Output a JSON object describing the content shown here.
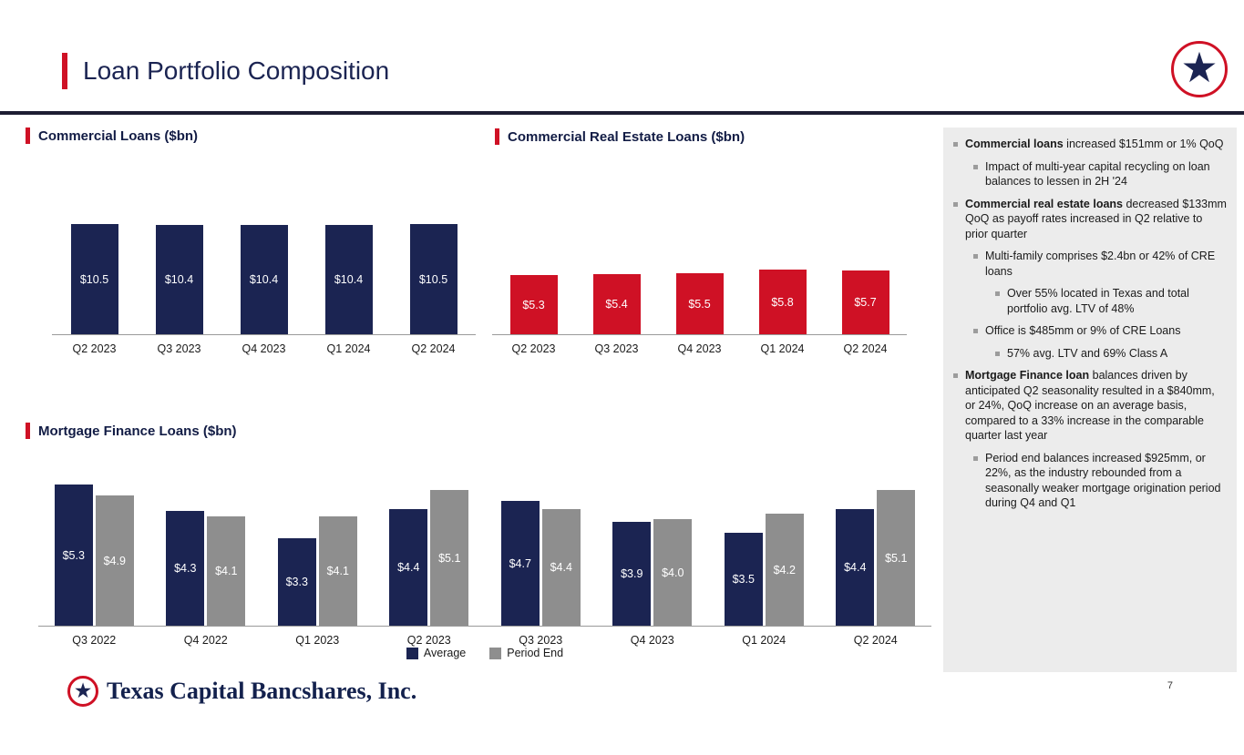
{
  "header": {
    "title": "Loan Portfolio Composition"
  },
  "footer": {
    "company": "Texas Capital Bancshares, Inc.",
    "page_number": "7"
  },
  "colors": {
    "navy": "#1b2452",
    "red": "#cf1125",
    "gray": "#8e8e8e",
    "sidebar_bg": "#ececec"
  },
  "chart_data": [
    {
      "type": "bar",
      "title": "Commercial Loans ($bn)",
      "categories": [
        "Q2 2023",
        "Q3 2023",
        "Q4 2023",
        "Q1 2024",
        "Q2 2024"
      ],
      "values": [
        10.5,
        10.4,
        10.4,
        10.4,
        10.5
      ],
      "labels": [
        "$10.5",
        "$10.4",
        "$10.4",
        "$10.4",
        "$10.5"
      ],
      "bar_color": "#1b2452",
      "ylim": [
        0,
        12
      ],
      "grid": false,
      "legend_position": "none"
    },
    {
      "type": "bar",
      "title": "Commercial Real Estate Loans ($bn)",
      "categories": [
        "Q2 2023",
        "Q3 2023",
        "Q4 2023",
        "Q1 2024",
        "Q2 2024"
      ],
      "values": [
        5.3,
        5.4,
        5.5,
        5.8,
        5.7
      ],
      "labels": [
        "$5.3",
        "$5.4",
        "$5.5",
        "$5.8",
        "$5.7"
      ],
      "bar_color": "#cf1125",
      "ylim": [
        0,
        12
      ],
      "grid": false,
      "legend_position": "none"
    },
    {
      "type": "bar",
      "title": "Mortgage Finance Loans ($bn)",
      "categories": [
        "Q3 2022",
        "Q4 2022",
        "Q1 2023",
        "Q2 2023",
        "Q3 2023",
        "Q4 2023",
        "Q1 2024",
        "Q2 2024"
      ],
      "series": [
        {
          "name": "Average",
          "values": [
            5.3,
            4.3,
            3.3,
            4.4,
            4.7,
            3.9,
            3.5,
            4.4
          ],
          "labels": [
            "$5.3",
            "$4.3",
            "$3.3",
            "$4.4",
            "$4.7",
            "$3.9",
            "$3.5",
            "$4.4"
          ],
          "color": "#1b2452"
        },
        {
          "name": "Period End",
          "values": [
            4.9,
            4.1,
            4.1,
            5.1,
            4.4,
            4.0,
            4.2,
            5.1
          ],
          "labels": [
            "$4.9",
            "$4.1",
            "$4.1",
            "$5.1",
            "$4.4",
            "$4.0",
            "$4.2",
            "$5.1"
          ],
          "color": "#8e8e8e"
        }
      ],
      "ylim": [
        0,
        6
      ],
      "grid": false,
      "legend_position": "bottom-center"
    }
  ],
  "sidebar": {
    "bullets": [
      {
        "level": 1,
        "bold": "Commercial loans",
        "text": " increased $151mm or 1% QoQ"
      },
      {
        "level": 2,
        "text": "Impact of multi-year capital recycling on loan balances to lessen in 2H '24"
      },
      {
        "level": 1,
        "bold": "Commercial real estate loans",
        "text": " decreased $133mm QoQ as payoff rates increased in Q2 relative to prior quarter"
      },
      {
        "level": 2,
        "text": "Multi-family comprises $2.4bn or 42% of CRE loans"
      },
      {
        "level": 3,
        "text": "Over 55% located in Texas and total portfolio avg. LTV of 48%"
      },
      {
        "level": 2,
        "text": "Office is $485mm or 9% of CRE Loans"
      },
      {
        "level": 3,
        "text": "57% avg. LTV and 69% Class A"
      },
      {
        "level": 1,
        "bold": "Mortgage Finance loan",
        "text": " balances driven by anticipated Q2 seasonality resulted in a $840mm, or 24%, QoQ increase on an average basis, compared to a 33% increase in the comparable quarter last year"
      },
      {
        "level": 2,
        "text": "Period end balances increased $925mm, or 22%, as the industry rebounded from a seasonally weaker mortgage origination period during Q4 and Q1"
      }
    ]
  }
}
